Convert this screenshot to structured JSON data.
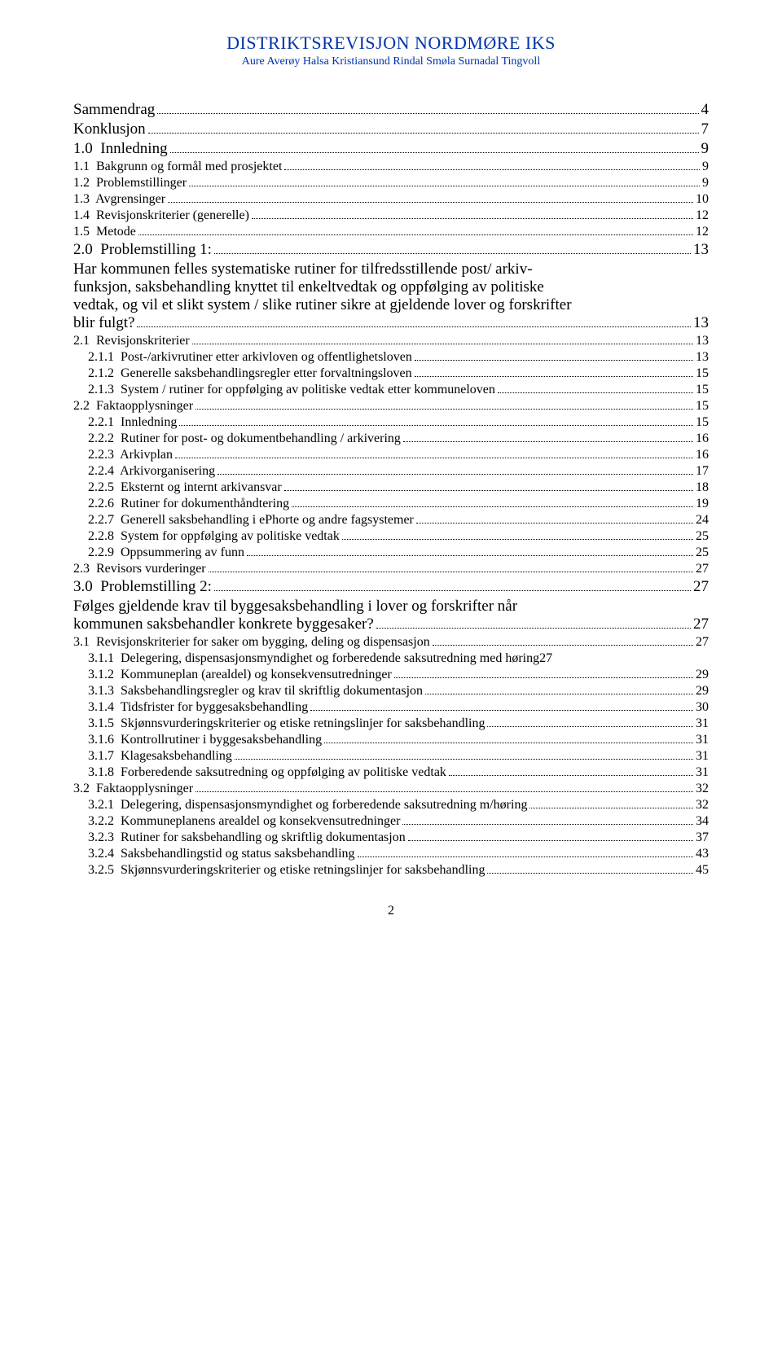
{
  "header": {
    "title": "DISTRIKTSREVISJON NORDMØRE IKS",
    "subtitle": "Aure Averøy Halsa Kristiansund Rindal Smøla Surnadal Tingvoll"
  },
  "toc": [
    {
      "level": 0,
      "label": "Sammendrag",
      "page": "4"
    },
    {
      "level": 0,
      "label": "Konklusjon",
      "page": "7"
    },
    {
      "level": 0,
      "label": "1.0  Innledning",
      "page": "9"
    },
    {
      "level": 1,
      "label": "1.1  Bakgrunn og formål med prosjektet",
      "page": "9"
    },
    {
      "level": 1,
      "label": "1.2  Problemstillinger",
      "page": "9"
    },
    {
      "level": 1,
      "label": "1.3  Avgrensinger",
      "page": "10"
    },
    {
      "level": 1,
      "label": "1.4  Revisjonskriterier (generelle)",
      "page": "12"
    },
    {
      "level": 1,
      "label": "1.5  Metode",
      "page": "12"
    },
    {
      "level": 0,
      "label": "2.0  Problemstilling 1:",
      "page": "13"
    },
    {
      "level": 0,
      "type": "wrap",
      "lines": [
        "Har kommunen felles systematiske rutiner for tilfredsstillende post/  arkiv-",
        "funksjon, saksbehandling knyttet til enkeltvedtak og oppfølging av politiske",
        "vedtak, og vil et slikt system / slike rutiner sikre at gjeldende lover og forskrifter"
      ],
      "last": "blir fulgt?",
      "page": "13"
    },
    {
      "level": 1,
      "label": "2.1  Revisjonskriterier",
      "page": "13"
    },
    {
      "level": 2,
      "label": "2.1.1  Post-/arkivrutiner etter arkivloven og offentlighetsloven",
      "page": "13"
    },
    {
      "level": 2,
      "label": "2.1.2  Generelle saksbehandlingsregler etter forvaltningsloven",
      "page": "15"
    },
    {
      "level": 2,
      "label": "2.1.3  System / rutiner for oppfølging av politiske vedtak etter kommuneloven",
      "page": "15"
    },
    {
      "level": 1,
      "label": "2.2  Faktaopplysninger",
      "page": "15"
    },
    {
      "level": 2,
      "label": "2.2.1  Innledning",
      "page": "15"
    },
    {
      "level": 2,
      "label": "2.2.2  Rutiner for post- og dokumentbehandling / arkivering",
      "page": "16"
    },
    {
      "level": 2,
      "label": "2.2.3  Arkivplan",
      "page": "16"
    },
    {
      "level": 2,
      "label": "2.2.4  Arkivorganisering",
      "page": "17"
    },
    {
      "level": 2,
      "label": "2.2.5  Eksternt og internt arkivansvar",
      "page": "18"
    },
    {
      "level": 2,
      "label": "2.2.6  Rutiner for dokumenthåndtering",
      "page": "19"
    },
    {
      "level": 2,
      "label": "2.2.7  Generell saksbehandling i ePhorte og andre fagsystemer",
      "page": "24"
    },
    {
      "level": 2,
      "label": "2.2.8  System for oppfølging av politiske vedtak",
      "page": "25"
    },
    {
      "level": 2,
      "label": "2.2.9  Oppsummering av funn",
      "page": "25"
    },
    {
      "level": 1,
      "label": "2.3  Revisors vurderinger",
      "page": "27"
    },
    {
      "level": 0,
      "label": "3.0  Problemstilling 2:",
      "page": "27"
    },
    {
      "level": 0,
      "type": "wrap",
      "lines": [
        "Følges  gjeldende  krav  til  byggesaksbehandling  i  lover  og  forskrifter  når"
      ],
      "last": "kommunen saksbehandler konkrete byggesaker?",
      "page": "27"
    },
    {
      "level": 1,
      "label": "3.1  Revisjonskriterier for saker om bygging, deling og dispensasjon",
      "page": "27"
    },
    {
      "level": 2,
      "label": "3.1.1  Delegering, dispensasjonsmyndighet og forberedende saksutredning med høring",
      "page": "27",
      "nodots": true
    },
    {
      "level": 2,
      "label": "3.1.2  Kommuneplan (arealdel) og konsekvensutredninger",
      "page": "29"
    },
    {
      "level": 2,
      "label": "3.1.3  Saksbehandlingsregler og krav til skriftlig dokumentasjon",
      "page": "29"
    },
    {
      "level": 2,
      "label": "3.1.4  Tidsfrister for byggesaksbehandling",
      "page": "30"
    },
    {
      "level": 2,
      "label": "3.1.5  Skjønnsvurderingskriterier og etiske retningslinjer for saksbehandling",
      "page": "31"
    },
    {
      "level": 2,
      "label": "3.1.6  Kontrollrutiner i byggesaksbehandling",
      "page": "31"
    },
    {
      "level": 2,
      "label": "3.1.7  Klagesaksbehandling",
      "page": "31"
    },
    {
      "level": 2,
      "label": "3.1.8  Forberedende saksutredning og oppfølging av politiske vedtak",
      "page": "31"
    },
    {
      "level": 1,
      "label": "3.2  Faktaopplysninger",
      "page": "32"
    },
    {
      "level": 2,
      "label": "3.2.1  Delegering, dispensasjonsmyndighet og forberedende saksutredning m/høring",
      "page": "32"
    },
    {
      "level": 2,
      "label": "3.2.2  Kommuneplanens arealdel og konsekvensutredninger",
      "page": "34"
    },
    {
      "level": 2,
      "label": "3.2.3  Rutiner for saksbehandling og skriftlig dokumentasjon",
      "page": "37"
    },
    {
      "level": 2,
      "label": "3.2.4  Saksbehandlingstid og status saksbehandling",
      "page": "43"
    },
    {
      "level": 2,
      "label": "3.2.5  Skjønnsvurderingskriterier og etiske retningslinjer for saksbehandling",
      "page": "45"
    }
  ],
  "page_number": "2"
}
